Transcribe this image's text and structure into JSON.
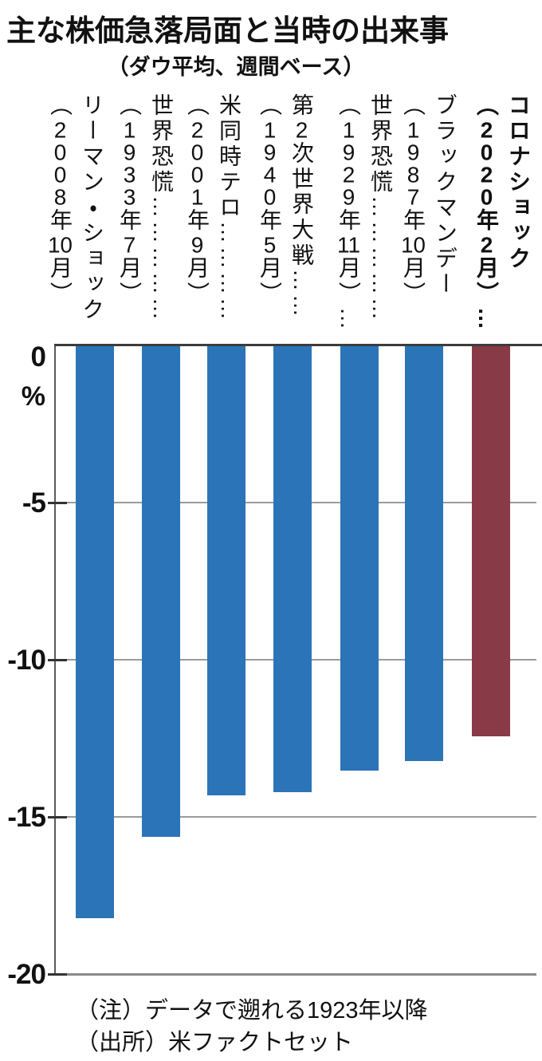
{
  "title": "主な株価急落局面と当時の出来事",
  "subtitle": "（ダウ平均、週間ベース）",
  "notes": {
    "note": "（注）データで遡れる1923年以降",
    "source": "（出所）米ファクトセット"
  },
  "colors": {
    "bar_default": "#2b74b8",
    "bar_highlight": "#883a47",
    "grid": "#9b9b9b",
    "zero_line": "#3c3c3c",
    "axis": "#5a5a5a",
    "text": "#111111"
  },
  "chart_data": {
    "type": "bar",
    "title": "主な株価急落局面と当時の出来事",
    "subtitle": "（ダウ平均、週間ベース）",
    "ylabel": "%",
    "ylim": [
      -20,
      0
    ],
    "y_ticks": [
      0,
      -5,
      -10,
      -15,
      -20
    ],
    "grid": true,
    "legend": "none",
    "bars": [
      {
        "event": "リーマン・ショック",
        "date": "（2008年10月）",
        "leader": "",
        "date_leader": "",
        "value": -18.2,
        "highlight": false
      },
      {
        "event": "世界恐慌",
        "date": "（1933年7月）",
        "leader": "……………",
        "date_leader": "",
        "value": -15.6,
        "highlight": false
      },
      {
        "event": "米同時テロ",
        "date": "（2001年9月）",
        "leader": "…………",
        "date_leader": "",
        "value": -14.3,
        "highlight": false
      },
      {
        "event": "第2次世界大戦",
        "date": "（1940年5月）",
        "leader": "……",
        "date_leader": "",
        "value": -14.2,
        "highlight": false
      },
      {
        "event": "世界恐慌",
        "date": "（1929年11月）",
        "leader": "……………",
        "date_leader": "…",
        "value": -13.5,
        "highlight": false
      },
      {
        "event": "ブラックマンデー",
        "date": "（1987年10月）",
        "leader": "",
        "date_leader": "",
        "value": -13.2,
        "highlight": false
      },
      {
        "event": "コロナショック",
        "date": "（2020年2月）",
        "leader": "",
        "date_leader": "…",
        "value": -12.4,
        "highlight": true
      }
    ]
  }
}
